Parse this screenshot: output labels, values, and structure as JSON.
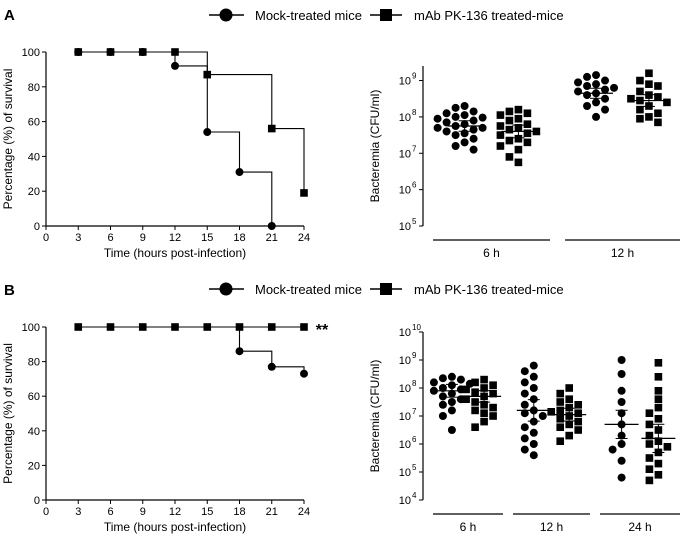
{
  "legend": {
    "mock_label": "Mock-treated mice",
    "mab_label": "mAb PK-136 treated-mice"
  },
  "chart_data": [
    {
      "panel": "A",
      "type": "line",
      "subtype": "survival-step",
      "title": "",
      "xlabel": "Time (hours post-infection)",
      "ylabel": "Percentage (%) of survival",
      "xlim": [
        0,
        24
      ],
      "ylim": [
        0,
        100
      ],
      "xticks": [
        0,
        3,
        6,
        9,
        12,
        15,
        18,
        21,
        24
      ],
      "yticks": [
        0,
        20,
        40,
        60,
        80,
        100
      ],
      "series": [
        {
          "name": "Mock-treated mice",
          "marker": "circle",
          "x": [
            3,
            6,
            9,
            12,
            15,
            18,
            21
          ],
          "y": [
            100,
            100,
            100,
            92,
            54,
            31,
            0
          ]
        },
        {
          "name": "mAb PK-136 treated-mice",
          "marker": "square",
          "x": [
            3,
            6,
            9,
            12,
            15,
            21,
            24
          ],
          "y": [
            100,
            100,
            100,
            100,
            87,
            56,
            19
          ]
        }
      ],
      "annotation": ""
    },
    {
      "panel": "A",
      "type": "scatter",
      "subtype": "dot-plot-log",
      "ylabel": "Bacteremia (CFU/ml)",
      "ylim_log10": [
        5,
        9.4
      ],
      "ytick_exponents": [
        5,
        6,
        7,
        8,
        9
      ],
      "ytick_base": "10",
      "groups": [
        {
          "label": "6 h",
          "left": {
            "series": "Mock-treated mice",
            "median_log10": 7.75,
            "points_log10": [
              8.3,
              8.15,
              8.25,
              8.0,
              8.1,
              7.95,
              7.9,
              7.85,
              7.8,
              7.75,
              7.7,
              7.7,
              7.65,
              7.6,
              7.55,
              7.5,
              7.4,
              7.3,
              7.2,
              7.1,
              8.05,
              7.98
            ]
          },
          "right": {
            "series": "mAb PK-136 treated-mice",
            "median_log10": 7.6,
            "points_log10": [
              8.2,
              8.15,
              8.1,
              8.05,
              7.95,
              7.9,
              7.8,
              7.75,
              7.7,
              7.6,
              7.55,
              7.5,
              7.4,
              7.35,
              7.3,
              7.2,
              7.1,
              6.9,
              6.75,
              7.65
            ]
          }
        },
        {
          "label": "12 h",
          "left": {
            "series": "Mock-treated mice",
            "median_log10": 8.65,
            "points_log10": [
              9.15,
              9.1,
              9.0,
              8.95,
              8.9,
              8.85,
              8.8,
              8.7,
              8.65,
              8.6,
              8.5,
              8.4,
              8.3,
              8.2,
              8.0,
              8.75
            ]
          },
          "right": {
            "series": "mAb PK-136 treated-mice",
            "median_log10": 8.45,
            "points_log10": [
              9.2,
              9.0,
              8.9,
              8.85,
              8.7,
              8.6,
              8.5,
              8.45,
              8.4,
              8.3,
              8.2,
              8.1,
              8.0,
              7.95,
              7.85,
              8.55
            ]
          }
        }
      ]
    },
    {
      "panel": "B",
      "type": "line",
      "subtype": "survival-step",
      "title": "",
      "xlabel": "Time (hours post-infection)",
      "ylabel": "Percentage (%) of survival",
      "xlim": [
        0,
        24
      ],
      "ylim": [
        0,
        100
      ],
      "xticks": [
        0,
        3,
        6,
        9,
        12,
        15,
        18,
        21,
        24
      ],
      "yticks": [
        0,
        20,
        40,
        60,
        80,
        100
      ],
      "series": [
        {
          "name": "Mock-treated mice",
          "marker": "circle",
          "x": [
            18,
            21,
            24
          ],
          "y": [
            86,
            77,
            73
          ]
        },
        {
          "name": "mAb PK-136 treated-mice",
          "marker": "square",
          "x": [
            3,
            6,
            9,
            12,
            15,
            18,
            21,
            24
          ],
          "y": [
            100,
            100,
            100,
            100,
            100,
            100,
            100,
            100
          ]
        }
      ],
      "annotation": "**"
    },
    {
      "panel": "B",
      "type": "scatter",
      "subtype": "dot-plot-log",
      "ylabel": "Bacteremia (CFU/ml)",
      "ylim_log10": [
        4,
        10
      ],
      "ytick_exponents": [
        4,
        5,
        6,
        7,
        8,
        9,
        10
      ],
      "ytick_base": "10",
      "groups": [
        {
          "label": "6 h",
          "left": {
            "series": "Mock-treated mice",
            "median_log10": 7.9,
            "points_log10": [
              8.4,
              8.35,
              8.3,
              8.2,
              8.15,
              8.1,
              8.0,
              7.95,
              7.9,
              7.8,
              7.7,
              7.6,
              7.5,
              7.4,
              7.2,
              7.0,
              6.5
            ]
          },
          "right": {
            "series": "mAb PK-136 treated-mice",
            "median_log10": 7.7,
            "points_log10": [
              8.3,
              8.2,
              8.1,
              8.0,
              7.95,
              7.85,
              7.8,
              7.7,
              7.6,
              7.5,
              7.4,
              7.3,
              7.2,
              7.1,
              7.0,
              6.8,
              6.6
            ]
          }
        },
        {
          "label": "12 h",
          "left": {
            "series": "Mock-treated mice",
            "median_log10": 7.2,
            "points_log10": [
              8.8,
              8.6,
              8.4,
              8.2,
              8.0,
              7.8,
              7.6,
              7.4,
              7.2,
              7.1,
              7.0,
              6.8,
              6.6,
              6.4,
              6.2,
              6.0,
              5.8,
              5.6
            ]
          },
          "right": {
            "series": "mAb PK-136 treated-mice",
            "median_log10": 7.05,
            "points_log10": [
              8.0,
              7.8,
              7.6,
              7.5,
              7.4,
              7.3,
              7.2,
              7.1,
              7.0,
              6.9,
              6.8,
              6.7,
              6.6,
              6.5,
              6.3,
              6.1,
              7.15
            ]
          }
        },
        {
          "label": "24 h",
          "left": {
            "series": "Mock-treated mice",
            "median_log10": 6.7,
            "points_log10": [
              9.0,
              8.5,
              7.9,
              7.5,
              7.1,
              6.7,
              6.3,
              6.0,
              5.8,
              5.4,
              4.8
            ]
          },
          "right": {
            "series": "mAb PK-136 treated-mice",
            "median_log10": 6.2,
            "points_log10": [
              8.9,
              8.4,
              7.9,
              7.6,
              7.3,
              7.1,
              6.9,
              6.7,
              6.5,
              6.3,
              6.1,
              5.9,
              5.7,
              5.5,
              5.3,
              5.1,
              4.9,
              4.7,
              6.0
            ]
          }
        }
      ]
    }
  ],
  "panels": {
    "A": {
      "label": "A"
    },
    "B": {
      "label": "B"
    }
  }
}
